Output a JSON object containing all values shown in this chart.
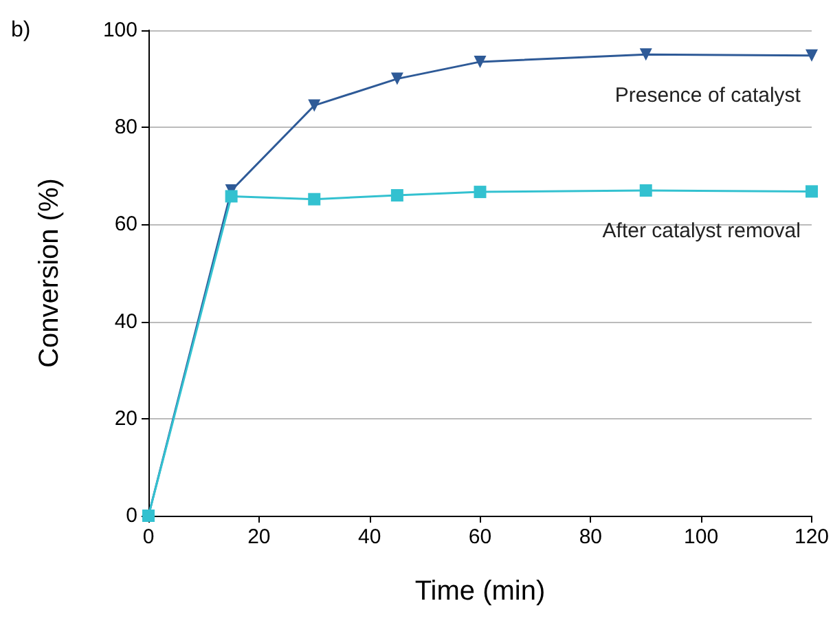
{
  "chart_data": {
    "type": "line",
    "xlabel": "Time (min)",
    "ylabel": "Conversion (%)",
    "annotations": [
      "b)"
    ],
    "x": [
      0,
      15,
      30,
      45,
      60,
      90,
      120
    ],
    "series": [
      {
        "name": "Presence of catalyst",
        "color": "#2e5a97",
        "marker": "triangle",
        "values": [
          0,
          67,
          84.5,
          90,
          93.5,
          95,
          94.8
        ]
      },
      {
        "name": "After catalyst removal",
        "color": "#33c1d0",
        "marker": "square",
        "values": [
          0,
          65.8,
          65.2,
          66,
          66.7,
          67,
          66.8
        ]
      }
    ],
    "xlim": [
      0,
      120
    ],
    "xticks": [
      0,
      20,
      40,
      60,
      80,
      100,
      120
    ],
    "ylim": [
      0,
      100
    ],
    "yticks": [
      0,
      20,
      40,
      60,
      80,
      100
    ],
    "grid": "y",
    "legend": false,
    "line_style": "solid"
  }
}
